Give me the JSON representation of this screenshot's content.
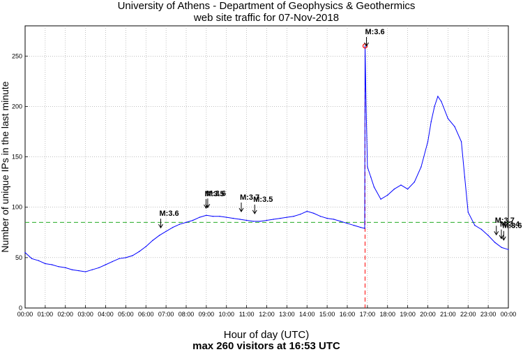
{
  "chart_data": {
    "type": "line",
    "title": "University of Athens - Department of Geophysics & Geothermics",
    "subtitle": "web site traffic for 07-Nov-2018",
    "xlabel": "Hour of day (UTC)",
    "ylabel": "Number of unique IPs in the last minute",
    "note": "max 260 visitors at 16:53 UTC",
    "xlim": [
      "00:00",
      "24:00"
    ],
    "ylim": [
      0,
      280
    ],
    "x_ticks": [
      "00:00",
      "01:00",
      "02:00",
      "03:00",
      "04:00",
      "05:00",
      "06:00",
      "07:00",
      "08:00",
      "09:00",
      "10:00",
      "11:00",
      "12:00",
      "13:00",
      "14:00",
      "15:00",
      "16:00",
      "17:00",
      "18:00",
      "19:00",
      "20:00",
      "21:00",
      "22:00",
      "23:00",
      "00:00"
    ],
    "y_ticks": [
      0,
      50,
      100,
      150,
      200,
      250
    ],
    "grid": true,
    "reference_line": {
      "y": 85,
      "color": "#22aa22",
      "style": "dashed"
    },
    "max_point": {
      "time": "16:53",
      "value": 260,
      "color": "#ff0000"
    },
    "series": [
      {
        "color": "#0000ff",
        "points": [
          [
            "00:00",
            55
          ],
          [
            "00:20",
            49
          ],
          [
            "00:40",
            47
          ],
          [
            "01:00",
            44
          ],
          [
            "01:20",
            43
          ],
          [
            "01:40",
            41
          ],
          [
            "02:00",
            40
          ],
          [
            "02:20",
            38
          ],
          [
            "02:40",
            37
          ],
          [
            "03:00",
            36
          ],
          [
            "03:20",
            38
          ],
          [
            "03:40",
            40
          ],
          [
            "04:00",
            43
          ],
          [
            "04:20",
            46
          ],
          [
            "04:40",
            49
          ],
          [
            "05:00",
            50
          ],
          [
            "05:20",
            52
          ],
          [
            "05:40",
            56
          ],
          [
            "06:00",
            61
          ],
          [
            "06:20",
            67
          ],
          [
            "06:40",
            72
          ],
          [
            "07:00",
            76
          ],
          [
            "07:20",
            80
          ],
          [
            "07:40",
            83
          ],
          [
            "08:00",
            85
          ],
          [
            "08:20",
            87
          ],
          [
            "08:40",
            90
          ],
          [
            "09:00",
            92
          ],
          [
            "09:20",
            91
          ],
          [
            "09:40",
            91
          ],
          [
            "10:00",
            90
          ],
          [
            "10:20",
            89
          ],
          [
            "10:40",
            88
          ],
          [
            "11:00",
            87
          ],
          [
            "11:20",
            86
          ],
          [
            "11:40",
            86
          ],
          [
            "12:00",
            87
          ],
          [
            "12:20",
            88
          ],
          [
            "12:40",
            89
          ],
          [
            "13:00",
            90
          ],
          [
            "13:20",
            91
          ],
          [
            "13:40",
            93
          ],
          [
            "14:00",
            96
          ],
          [
            "14:20",
            94
          ],
          [
            "14:40",
            91
          ],
          [
            "15:00",
            89
          ],
          [
            "15:20",
            88
          ],
          [
            "15:40",
            86
          ],
          [
            "16:00",
            84
          ],
          [
            "16:20",
            82
          ],
          [
            "16:40",
            80
          ],
          [
            "16:52",
            79
          ],
          [
            "16:53",
            260
          ],
          [
            "16:56",
            200
          ],
          [
            "17:00",
            140
          ],
          [
            "17:10",
            130
          ],
          [
            "17:20",
            120
          ],
          [
            "17:40",
            108
          ],
          [
            "18:00",
            112
          ],
          [
            "18:20",
            118
          ],
          [
            "18:40",
            122
          ],
          [
            "19:00",
            118
          ],
          [
            "19:20",
            125
          ],
          [
            "19:40",
            140
          ],
          [
            "20:00",
            165
          ],
          [
            "20:10",
            185
          ],
          [
            "20:20",
            200
          ],
          [
            "20:30",
            210
          ],
          [
            "20:40",
            205
          ],
          [
            "21:00",
            188
          ],
          [
            "21:20",
            180
          ],
          [
            "21:40",
            165
          ],
          [
            "21:50",
            130
          ],
          [
            "22:00",
            95
          ],
          [
            "22:20",
            82
          ],
          [
            "22:40",
            78
          ],
          [
            "23:00",
            72
          ],
          [
            "23:20",
            65
          ],
          [
            "23:40",
            60
          ],
          [
            "24:00",
            58
          ]
        ]
      }
    ],
    "annotations": [
      {
        "text": "M:3.6",
        "time": "06:40"
      },
      {
        "text": "M:3.5",
        "time": "08:55"
      },
      {
        "text": "M:3.6",
        "time": "09:00"
      },
      {
        "text": "M:3.7",
        "time": "10:40"
      },
      {
        "text": "M:3.5",
        "time": "11:20"
      },
      {
        "text": "M:3.6",
        "time": "16:53"
      },
      {
        "text": "M:3.7",
        "time": "23:20"
      },
      {
        "text": "M:3.4",
        "time": "23:35"
      },
      {
        "text": "M:3.6",
        "time": "23:42"
      }
    ]
  }
}
